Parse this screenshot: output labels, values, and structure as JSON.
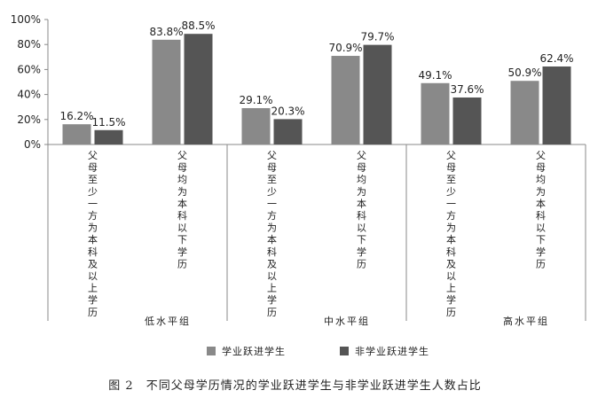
{
  "chart_data": {
    "type": "bar",
    "title": "",
    "ylim": [
      0,
      100
    ],
    "yticks": [
      "0%",
      "20%",
      "40%",
      "60%",
      "80%",
      "100%"
    ],
    "groups": [
      {
        "label": "低水平组",
        "categories": [
          "父母至少一方为本科及以上学历",
          "父母均为本科以下学历"
        ]
      },
      {
        "label": "中水平组",
        "categories": [
          "父母至少一方为本科及以上学历",
          "父母均为本科以下学历"
        ]
      },
      {
        "label": "高水平组",
        "categories": [
          "父母至少一方为本科及以上学历",
          "父母均为本科以下学历"
        ]
      }
    ],
    "series": [
      {
        "name": "学业跃进学生",
        "color": "#898989",
        "values": [
          16.2,
          83.8,
          29.1,
          70.9,
          49.1,
          50.9
        ],
        "labels": [
          "16.2%",
          "83.8%",
          "29.1%",
          "70.9%",
          "49.1%",
          "50.9%"
        ]
      },
      {
        "name": "非学业跃进学生",
        "color": "#555555",
        "values": [
          11.5,
          88.5,
          20.3,
          79.7,
          37.6,
          62.4
        ],
        "labels": [
          "11.5%",
          "88.5%",
          "20.3%",
          "79.7%",
          "37.6%",
          "62.4%"
        ]
      }
    ],
    "legend_position": "bottom"
  },
  "caption": "图 2　不同父母学历情况的学业跃进学生与非学业跃进学生人数占比"
}
